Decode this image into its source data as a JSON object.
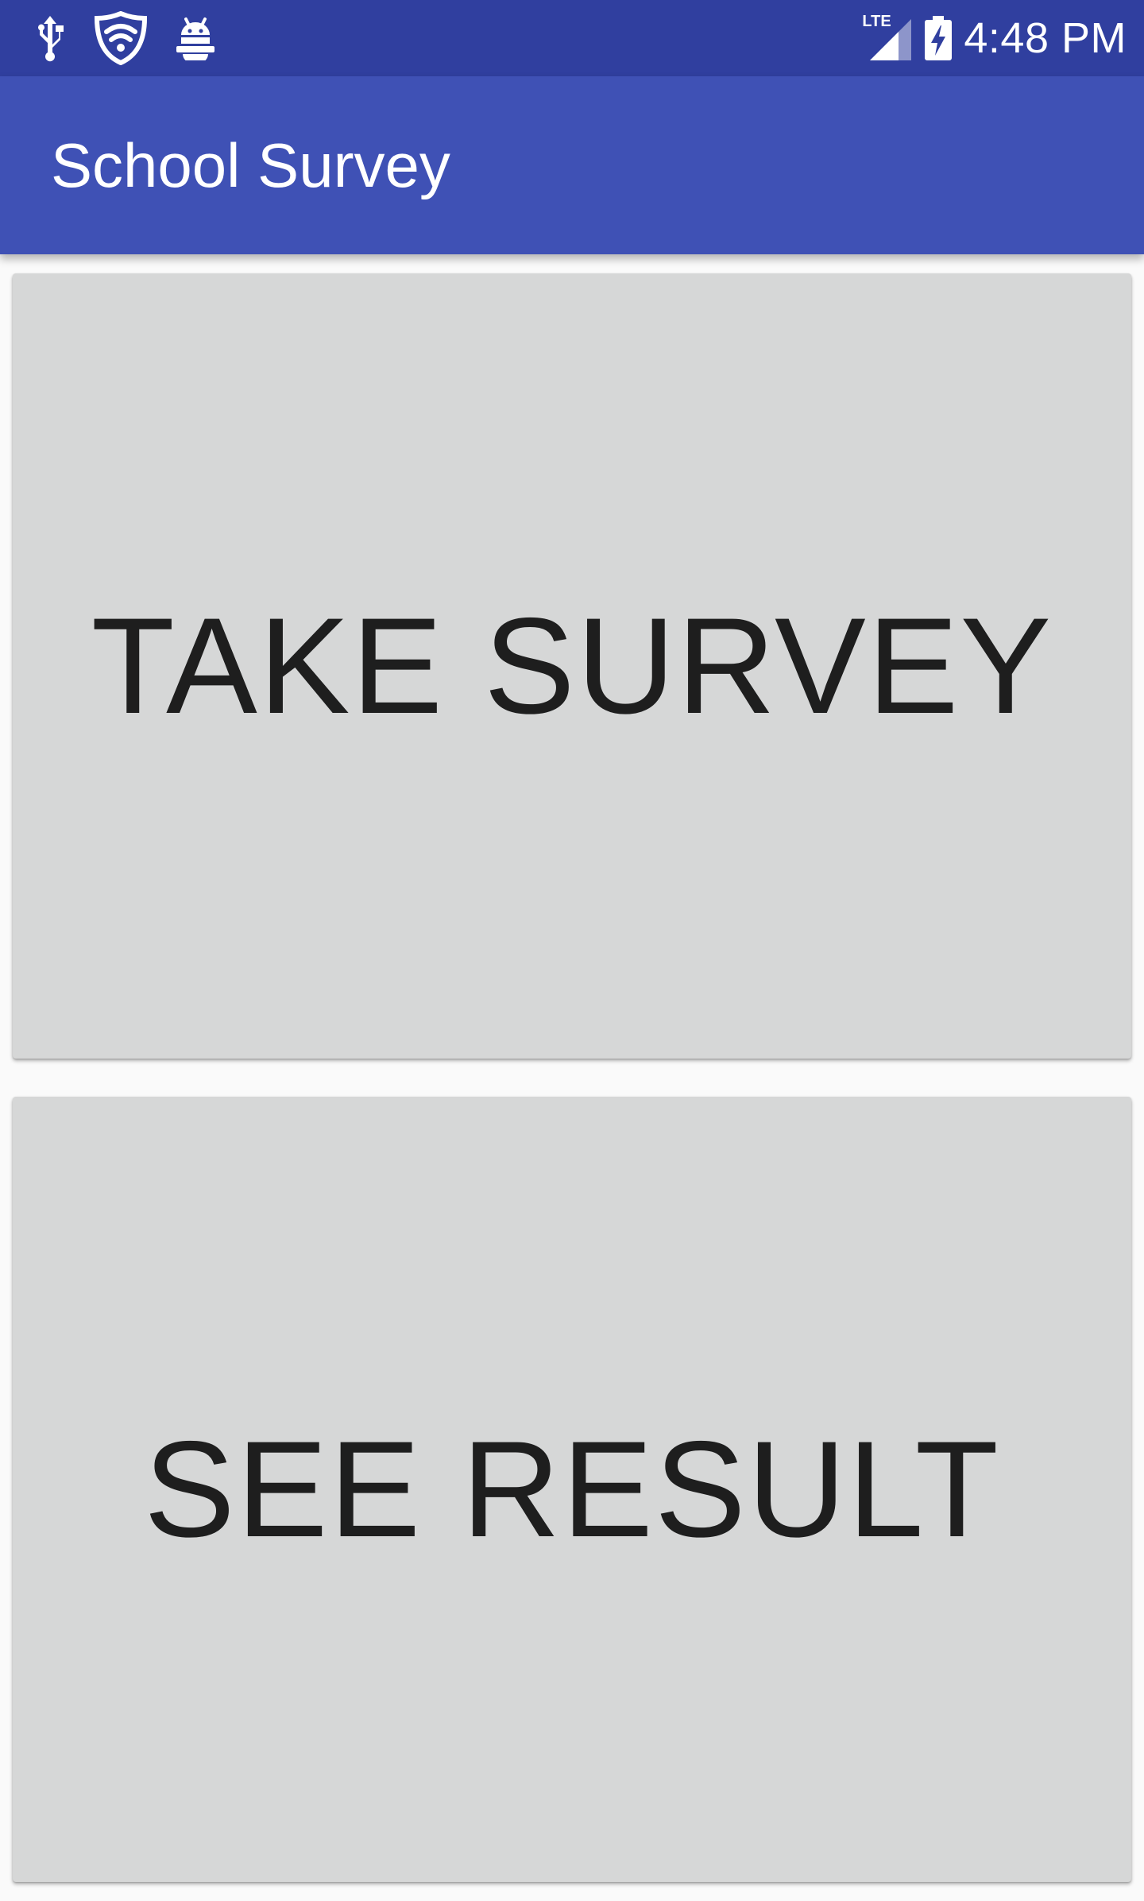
{
  "status_bar": {
    "icons_left": [
      "usb-icon",
      "vpn-shield-icon",
      "android-debug-icon"
    ],
    "network_label": "LTE",
    "time": "4:48 PM",
    "colors": {
      "background": "#303f9f",
      "foreground": "#ffffff"
    }
  },
  "app_bar": {
    "title": "School Survey",
    "color": "#3f51b5"
  },
  "main": {
    "take_survey_label": "TAKE SURVEY",
    "see_result_label": "SEE RESULT",
    "button_color": "#d6d7d7",
    "text_color": "#1e1e1e"
  }
}
